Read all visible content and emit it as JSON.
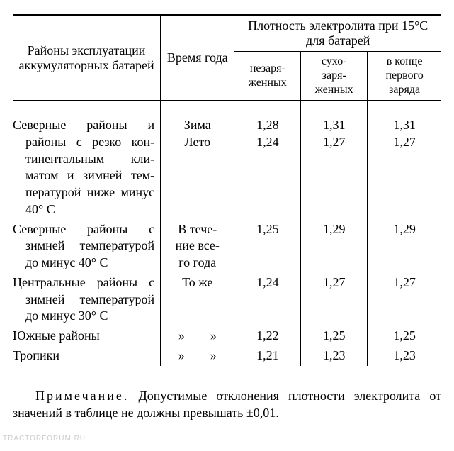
{
  "table": {
    "header": {
      "region": "Районы эксплуатации аккумуляторных батарей",
      "season": "Время года",
      "density_group": "Плотность электролита при 15°С для батарей",
      "sub1": "незаря-\nженных",
      "sub2": "сухо-\nзаря-\nженных",
      "sub3": "в конце первого заряда"
    },
    "rows": [
      {
        "region": "Северные районы и районы с резко кон­тинентальным кли­матом и зимней тем­пературой ниже ми­нус 40° С",
        "season_lines": [
          "Зима",
          "Лето"
        ],
        "d1_lines": [
          "1,28",
          "1,24"
        ],
        "d2_lines": [
          "1,31",
          "1,27"
        ],
        "d3_lines": [
          "1,31",
          "1,27"
        ]
      },
      {
        "region": "Северные районы с зимней температу­рой до минус 40° С",
        "season_lines": [
          "В тече-",
          "ние все-",
          "го года"
        ],
        "d1_lines": [
          "1,25"
        ],
        "d2_lines": [
          "1,29"
        ],
        "d3_lines": [
          "1,29"
        ]
      },
      {
        "region": "Центральные районы с зимней температу­рой до минус 30° С",
        "season_lines": [
          "То же"
        ],
        "d1_lines": [
          "1,24"
        ],
        "d2_lines": [
          "1,27"
        ],
        "d3_lines": [
          "1,27"
        ]
      },
      {
        "region": "Южные районы",
        "season_lines": [
          "»  »"
        ],
        "d1_lines": [
          "1,22"
        ],
        "d2_lines": [
          "1,25"
        ],
        "d3_lines": [
          "1,25"
        ]
      },
      {
        "region": "Тропики",
        "season_lines": [
          "»  »"
        ],
        "d1_lines": [
          "1,21"
        ],
        "d2_lines": [
          "1,23"
        ],
        "d3_lines": [
          "1,23"
        ]
      }
    ]
  },
  "note": {
    "label": "Примечание.",
    "text": "Допустимые отклонения плотно­сти электролита от значений в таблице не должны пре­вышать ±0,01."
  },
  "watermark": "TRACTORFORUM.RU",
  "colors": {
    "text": "#000000",
    "background": "#ffffff",
    "border": "#000000",
    "watermark": "#cccccc"
  },
  "fonts": {
    "body_size_pt": 14,
    "header_sub_size_pt": 12,
    "family": "Times New Roman serif"
  }
}
